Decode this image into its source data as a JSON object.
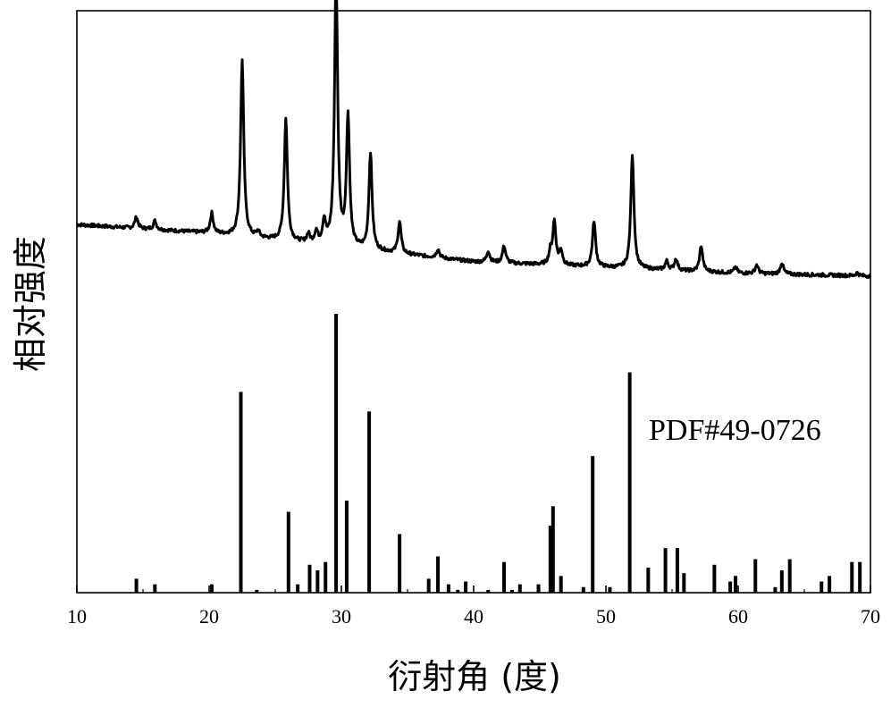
{
  "chart_data": {
    "type": "line",
    "title": "",
    "xlabel": "衍射角 (度)",
    "ylabel": "相对强度",
    "xlim": [
      10,
      70
    ],
    "xticks": [
      "10",
      "20",
      "30",
      "40",
      "50",
      "60",
      "70"
    ],
    "grid": false,
    "annotations": [
      {
        "text": "PDF#49-0726"
      }
    ],
    "series": [
      {
        "kind": "xrd-pattern-line",
        "color": "#000000",
        "baseline": [
          [
            10,
            0.34
          ],
          [
            20,
            0.31
          ],
          [
            30,
            0.26
          ],
          [
            40,
            0.21
          ],
          [
            50,
            0.19
          ],
          [
            60,
            0.17
          ],
          [
            70,
            0.16
          ]
        ],
        "peaks": [
          [
            14.5,
            0.04
          ],
          [
            15.9,
            0.03
          ],
          [
            20.2,
            0.07
          ],
          [
            22.5,
            0.62
          ],
          [
            23.7,
            0.02
          ],
          [
            25.8,
            0.43
          ],
          [
            27.5,
            0.03
          ],
          [
            28.1,
            0.04
          ],
          [
            28.7,
            0.08
          ],
          [
            29.6,
            0.94
          ],
          [
            30.5,
            0.46
          ],
          [
            32.2,
            0.34
          ],
          [
            34.4,
            0.11
          ],
          [
            37.3,
            0.03
          ],
          [
            41.1,
            0.04
          ],
          [
            42.3,
            0.06
          ],
          [
            45.8,
            0.04
          ],
          [
            46.1,
            0.15
          ],
          [
            46.6,
            0.05
          ],
          [
            49.1,
            0.16
          ],
          [
            52.0,
            0.4
          ],
          [
            54.6,
            0.03
          ],
          [
            55.3,
            0.04
          ],
          [
            57.2,
            0.09
          ],
          [
            59.8,
            0.02
          ],
          [
            61.4,
            0.03
          ],
          [
            63.3,
            0.04
          ],
          [
            69.0,
            0.01
          ]
        ]
      },
      {
        "kind": "reference-sticks",
        "color": "#000000",
        "x": [
          14.5,
          15.9,
          20.2,
          22.4,
          23.6,
          26.0,
          26.7,
          27.6,
          28.2,
          28.8,
          29.6,
          30.4,
          32.1,
          34.4,
          36.6,
          37.3,
          38.1,
          38.8,
          39.4,
          41.1,
          42.3,
          42.9,
          43.5,
          44.9,
          45.8,
          46.0,
          46.6,
          48.3,
          49.0,
          50.3,
          51.8,
          53.2,
          54.5,
          55.4,
          55.9,
          58.2,
          59.4,
          59.8,
          61.3,
          62.8,
          63.3,
          63.9,
          66.3,
          66.9,
          68.6,
          69.2
        ],
        "values": [
          5,
          3,
          3,
          72,
          1,
          29,
          3,
          10,
          8,
          11,
          100,
          33,
          65,
          21,
          5,
          13,
          3,
          1,
          4,
          1,
          11,
          1,
          3,
          3,
          24,
          31,
          6,
          2,
          49,
          2,
          79,
          9,
          16,
          16,
          7,
          10,
          4,
          6,
          12,
          2,
          8,
          12,
          4,
          6,
          11,
          11
        ]
      }
    ]
  }
}
